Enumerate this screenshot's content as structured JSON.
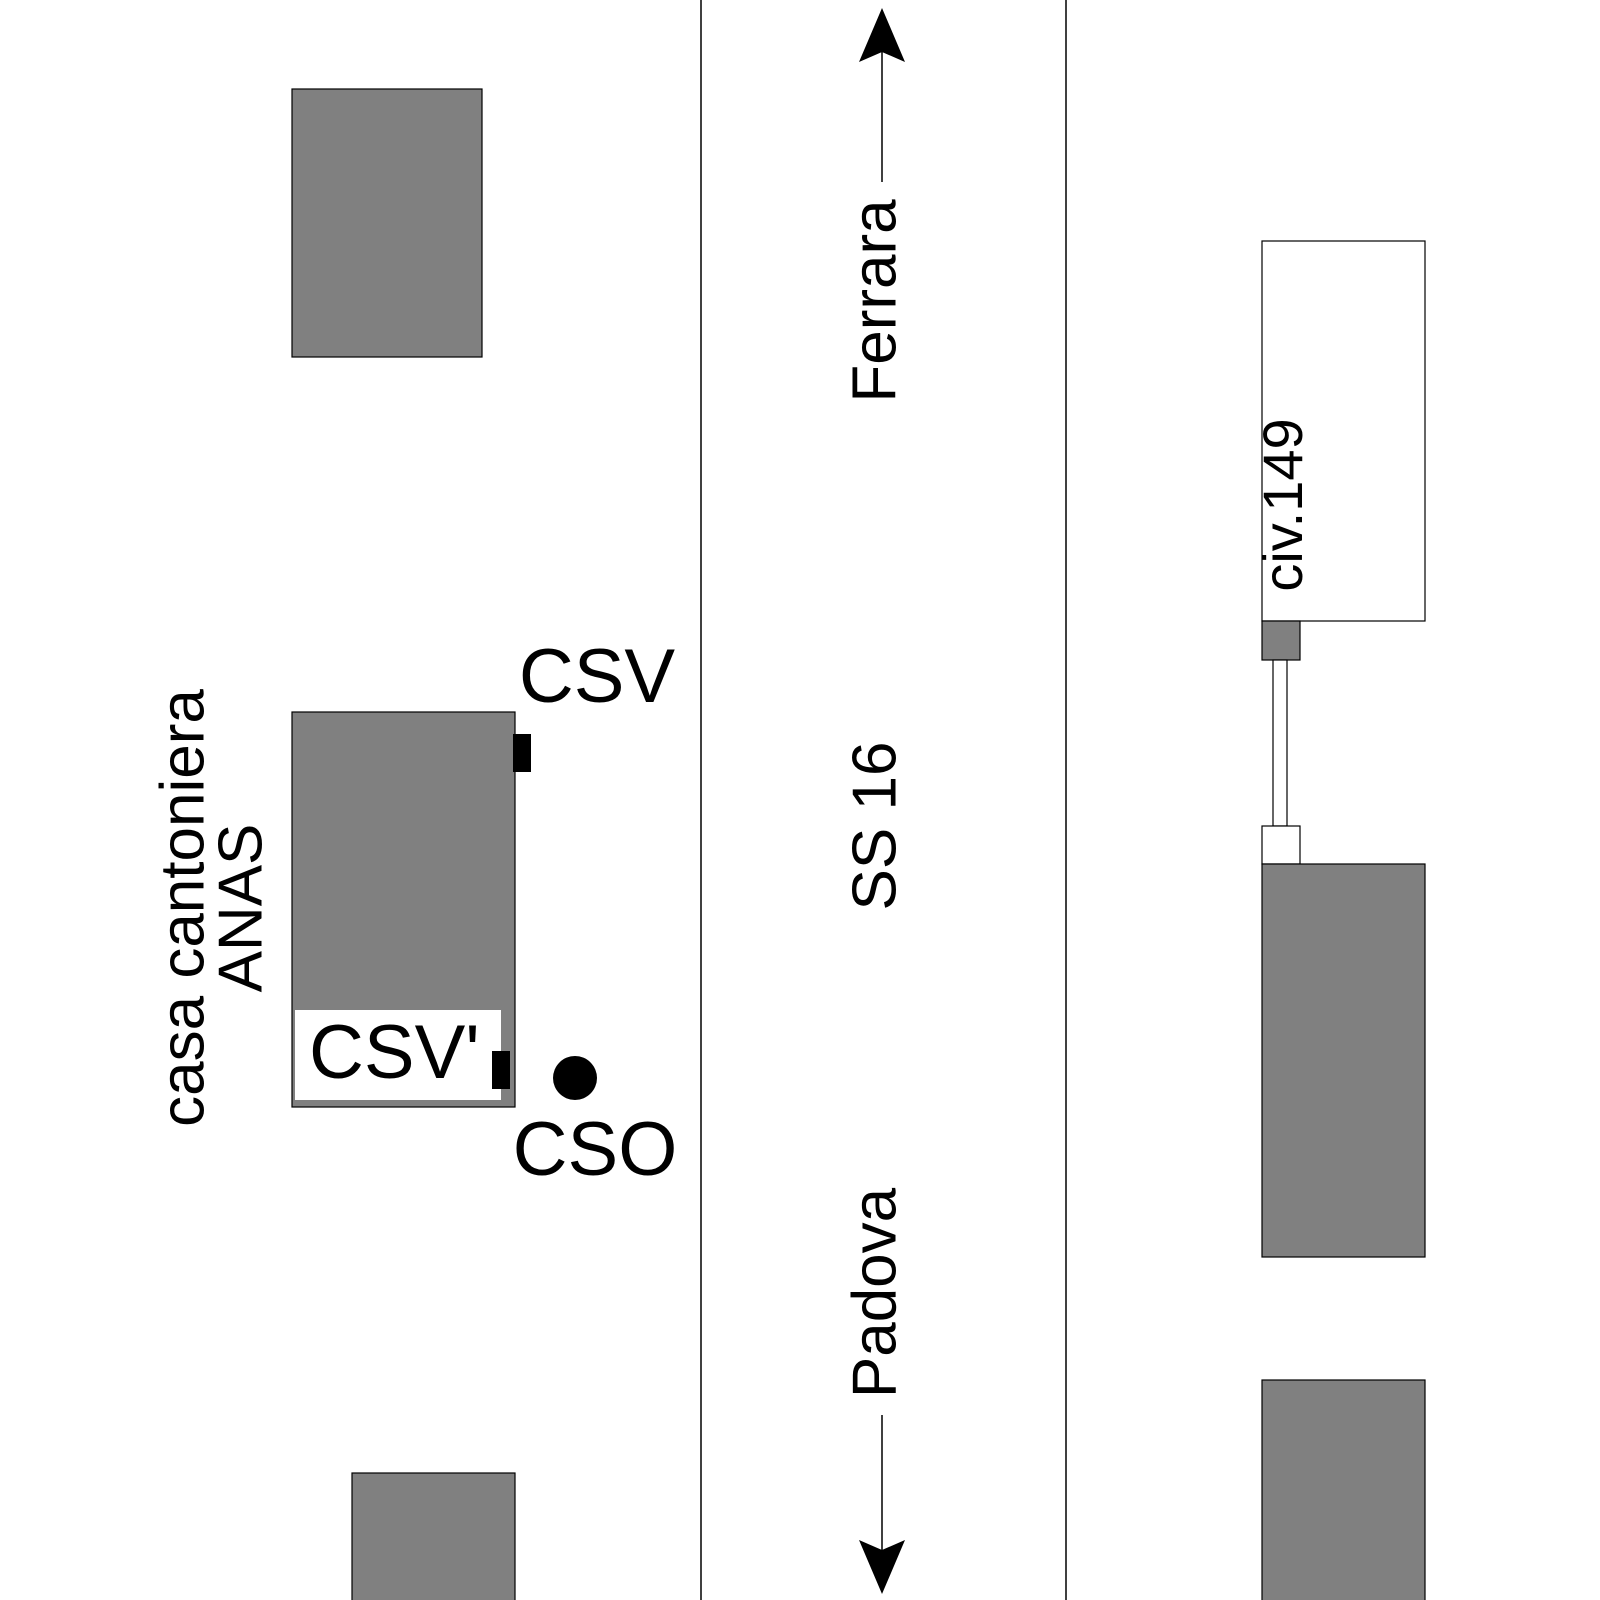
{
  "road": {
    "name": "SS 16",
    "north": "Ferrara",
    "south": "Padova"
  },
  "labels": {
    "building": "casa cantoniera",
    "owner": "ANAS",
    "csv": "CSV",
    "csv_prime": "CSV'",
    "cso": "CSO",
    "civic": "civ.149"
  }
}
